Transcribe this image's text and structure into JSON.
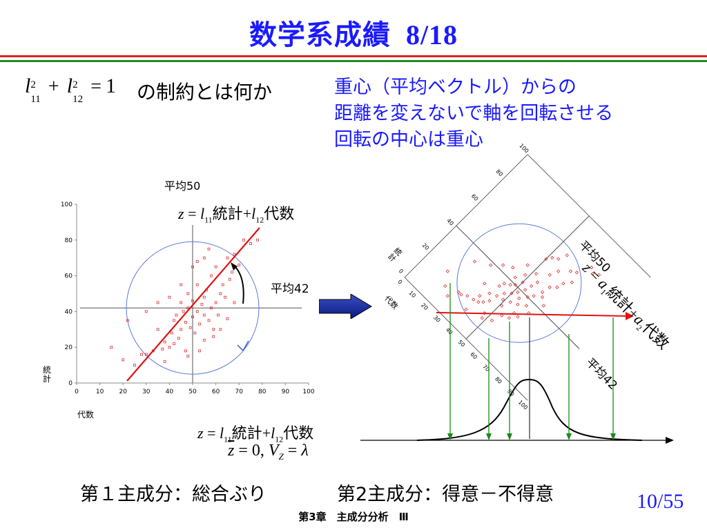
{
  "slide": {
    "title": "数学系成績",
    "page_marker": "8/18",
    "constraint_suffix": "の制約とは何か",
    "explanation_lines": [
      "重心（平均ベクトル）からの",
      "距離を変えないで軸を回転させる",
      "回転の中心は重心"
    ],
    "mean50_label": "平均50",
    "mean42_label": "平均42",
    "left_formula": "z = l11統計 + l12代数",
    "right_formula": "z = a1統計 + a2代数",
    "bottom_formula_1": "z = l11統計 + l12代数",
    "bottom_formula_2": "z̄ = 0, VZ = λ",
    "pc1_label": "第１主成分：総合ぶり",
    "pc2_label": "第2主成分：得意－不得意",
    "page_number": "10/55",
    "footer": "第3章　主成分分析　Ⅲ"
  },
  "chart_data": [
    {
      "type": "scatter",
      "xlabel": "代数",
      "ylabel": "統計",
      "x_ticks": [
        "0",
        "10",
        "20",
        "30",
        "40",
        "50",
        "60",
        "70",
        "80",
        "90",
        "100"
      ],
      "y_ticks": [
        "0",
        "20",
        "40",
        "60",
        "80",
        "100"
      ],
      "xlim": [
        0,
        100
      ],
      "ylim": [
        0,
        100
      ],
      "mean_x": 50,
      "mean_y": 42,
      "points": [
        [
          15,
          20
        ],
        [
          20,
          13
        ],
        [
          25,
          10
        ],
        [
          28,
          16
        ],
        [
          30,
          16
        ],
        [
          33,
          18
        ],
        [
          35,
          30
        ],
        [
          37,
          19
        ],
        [
          38,
          23
        ],
        [
          40,
          20
        ],
        [
          41,
          28
        ],
        [
          42,
          35
        ],
        [
          43,
          38
        ],
        [
          44,
          25
        ],
        [
          45,
          30
        ],
        [
          45,
          45
        ],
        [
          46,
          40
        ],
        [
          47,
          34
        ],
        [
          47,
          18
        ],
        [
          48,
          42
        ],
        [
          48,
          50
        ],
        [
          49,
          31
        ],
        [
          50,
          37
        ],
        [
          50,
          46
        ],
        [
          51,
          28
        ],
        [
          52,
          40
        ],
        [
          52,
          55
        ],
        [
          53,
          33
        ],
        [
          54,
          44
        ],
        [
          55,
          24
        ],
        [
          55,
          38
        ],
        [
          55,
          48
        ],
        [
          56,
          52
        ],
        [
          57,
          35
        ],
        [
          58,
          42
        ],
        [
          58,
          60
        ],
        [
          59,
          30
        ],
        [
          60,
          45
        ],
        [
          60,
          65
        ],
        [
          61,
          38
        ],
        [
          62,
          50
        ],
        [
          63,
          55
        ],
        [
          64,
          48
        ],
        [
          65,
          70
        ],
        [
          66,
          58
        ],
        [
          67,
          62
        ],
        [
          68,
          72
        ],
        [
          70,
          66
        ],
        [
          72,
          80
        ],
        [
          75,
          78
        ],
        [
          78,
          80
        ],
        [
          22,
          35
        ],
        [
          30,
          40
        ],
        [
          35,
          45
        ],
        [
          40,
          48
        ],
        [
          45,
          55
        ],
        [
          50,
          65
        ],
        [
          52,
          68
        ],
        [
          55,
          70
        ],
        [
          57,
          75
        ],
        [
          42,
          22
        ],
        [
          38,
          12
        ],
        [
          48,
          15
        ],
        [
          53,
          18
        ],
        [
          59,
          26
        ],
        [
          62,
          30
        ],
        [
          65,
          36
        ],
        [
          68,
          45
        ]
      ]
    },
    {
      "type": "scatter",
      "xlabel": "代数",
      "ylabel": "統計",
      "x_ticks": [
        "0",
        "10",
        "20",
        "30",
        "40",
        "50",
        "60",
        "70",
        "80",
        "90",
        "100"
      ],
      "y_ticks": [
        "0",
        "20",
        "40",
        "60",
        "80",
        "100"
      ],
      "rotated": true
    }
  ]
}
